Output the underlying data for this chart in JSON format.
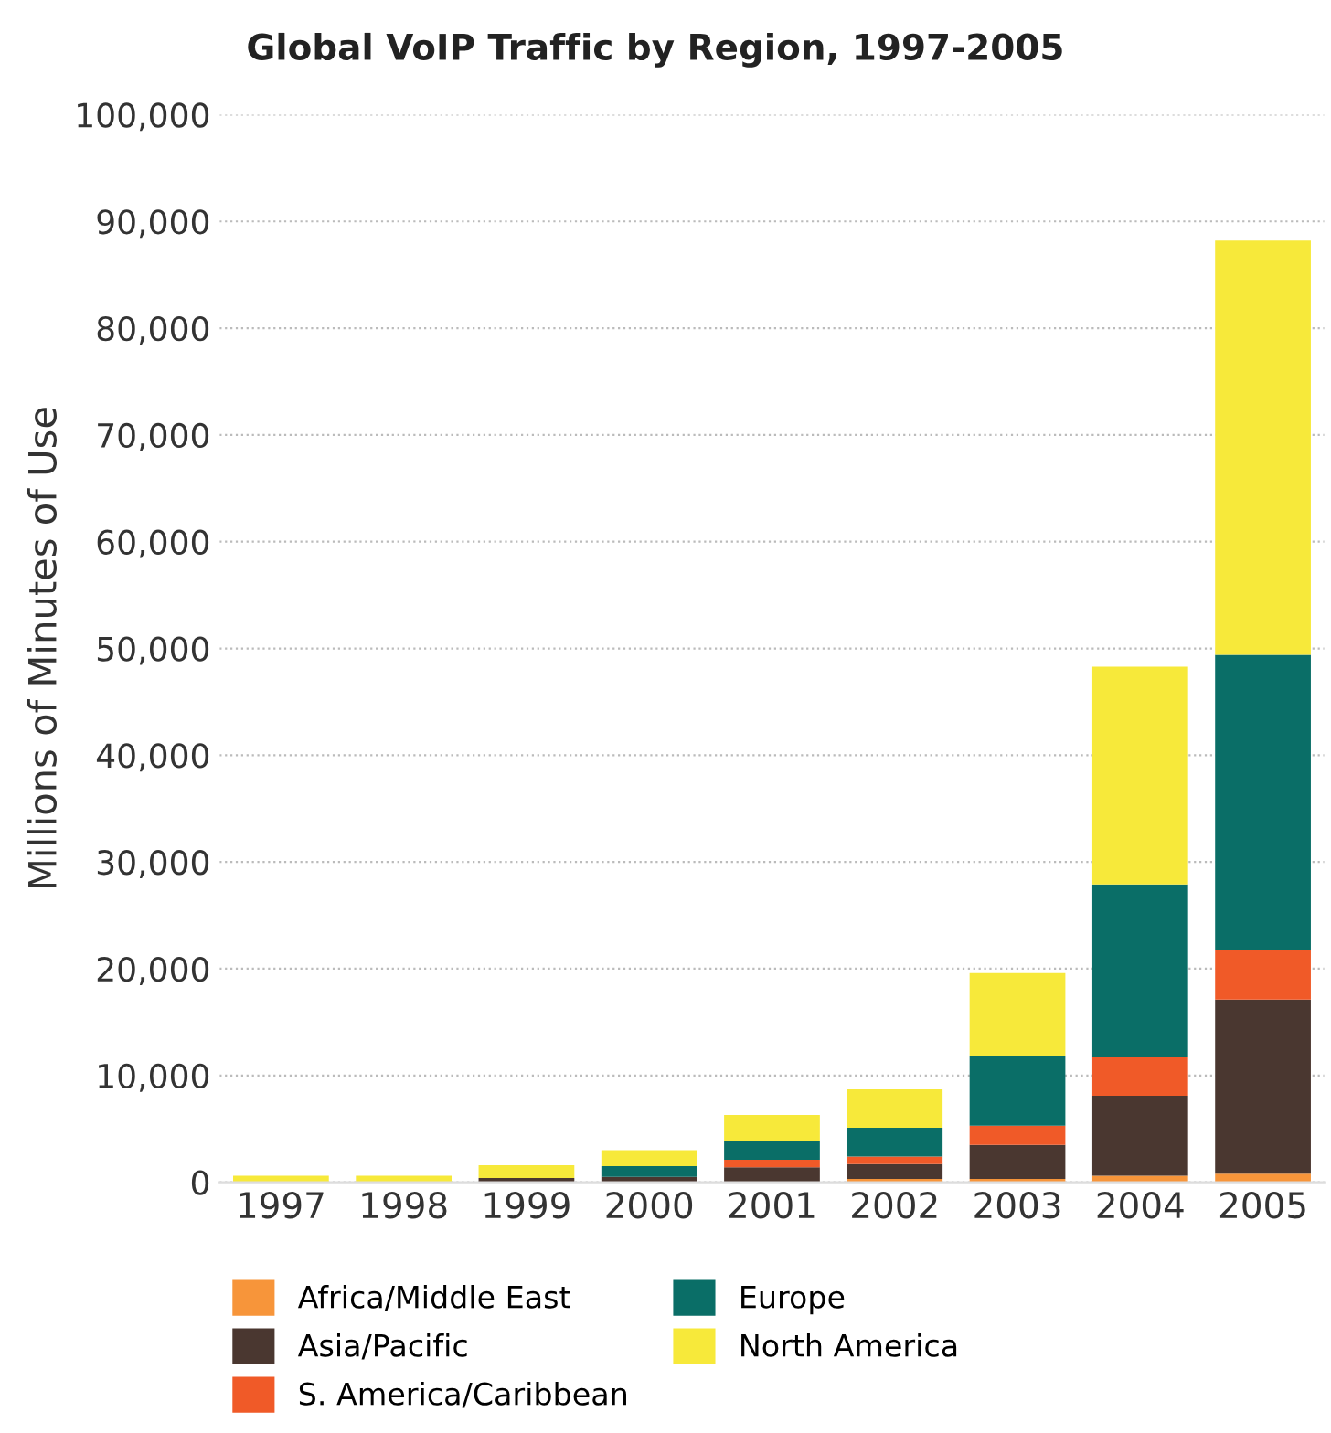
{
  "chart_data": {
    "type": "bar",
    "stacked": true,
    "title": "Global VoIP Traffic by Region, 1997-2005",
    "ylabel": "Millions of Minutes of Use",
    "categories": [
      "1997",
      "1998",
      "1999",
      "2000",
      "2001",
      "2002",
      "2003",
      "2004",
      "2005"
    ],
    "series": [
      {
        "name": "Africa/Middle East",
        "color": "#f7953a",
        "values": [
          null,
          null,
          null,
          null,
          null,
          300,
          300,
          600,
          800
        ]
      },
      {
        "name": "Asia/Pacific",
        "color": "#4a3730",
        "values": [
          null,
          null,
          400,
          500,
          1400,
          1400,
          3200,
          7500,
          16300
        ]
      },
      {
        "name": "S. America/Caribbean",
        "color": "#f05a28",
        "values": [
          null,
          null,
          null,
          null,
          700,
          700,
          1800,
          3600,
          4600
        ]
      },
      {
        "name": "Europe",
        "color": "#0a6e67",
        "values": [
          null,
          null,
          null,
          1000,
          1800,
          2700,
          6500,
          16200,
          27700
        ]
      },
      {
        "name": "North America",
        "color": "#f7e93a",
        "values": [
          600,
          600,
          1200,
          1500,
          2400,
          3600,
          7800,
          20400,
          38800
        ]
      }
    ],
    "ylim": [
      0,
      100000
    ],
    "yticks": [
      {
        "value": 0,
        "label": "0"
      },
      {
        "value": 10000,
        "label": "10,000"
      },
      {
        "value": 20000,
        "label": "20,000"
      },
      {
        "value": 30000,
        "label": "30,000"
      },
      {
        "value": 40000,
        "label": "40,000"
      },
      {
        "value": 50000,
        "label": "50,000"
      },
      {
        "value": 60000,
        "label": "60,000"
      },
      {
        "value": 70000,
        "label": "70,000"
      },
      {
        "value": 80000,
        "label": "80,000"
      },
      {
        "value": 90000,
        "label": "90,000"
      },
      {
        "value": 100000,
        "label": "100,000"
      }
    ],
    "grid": "y",
    "legend": "bottom"
  }
}
